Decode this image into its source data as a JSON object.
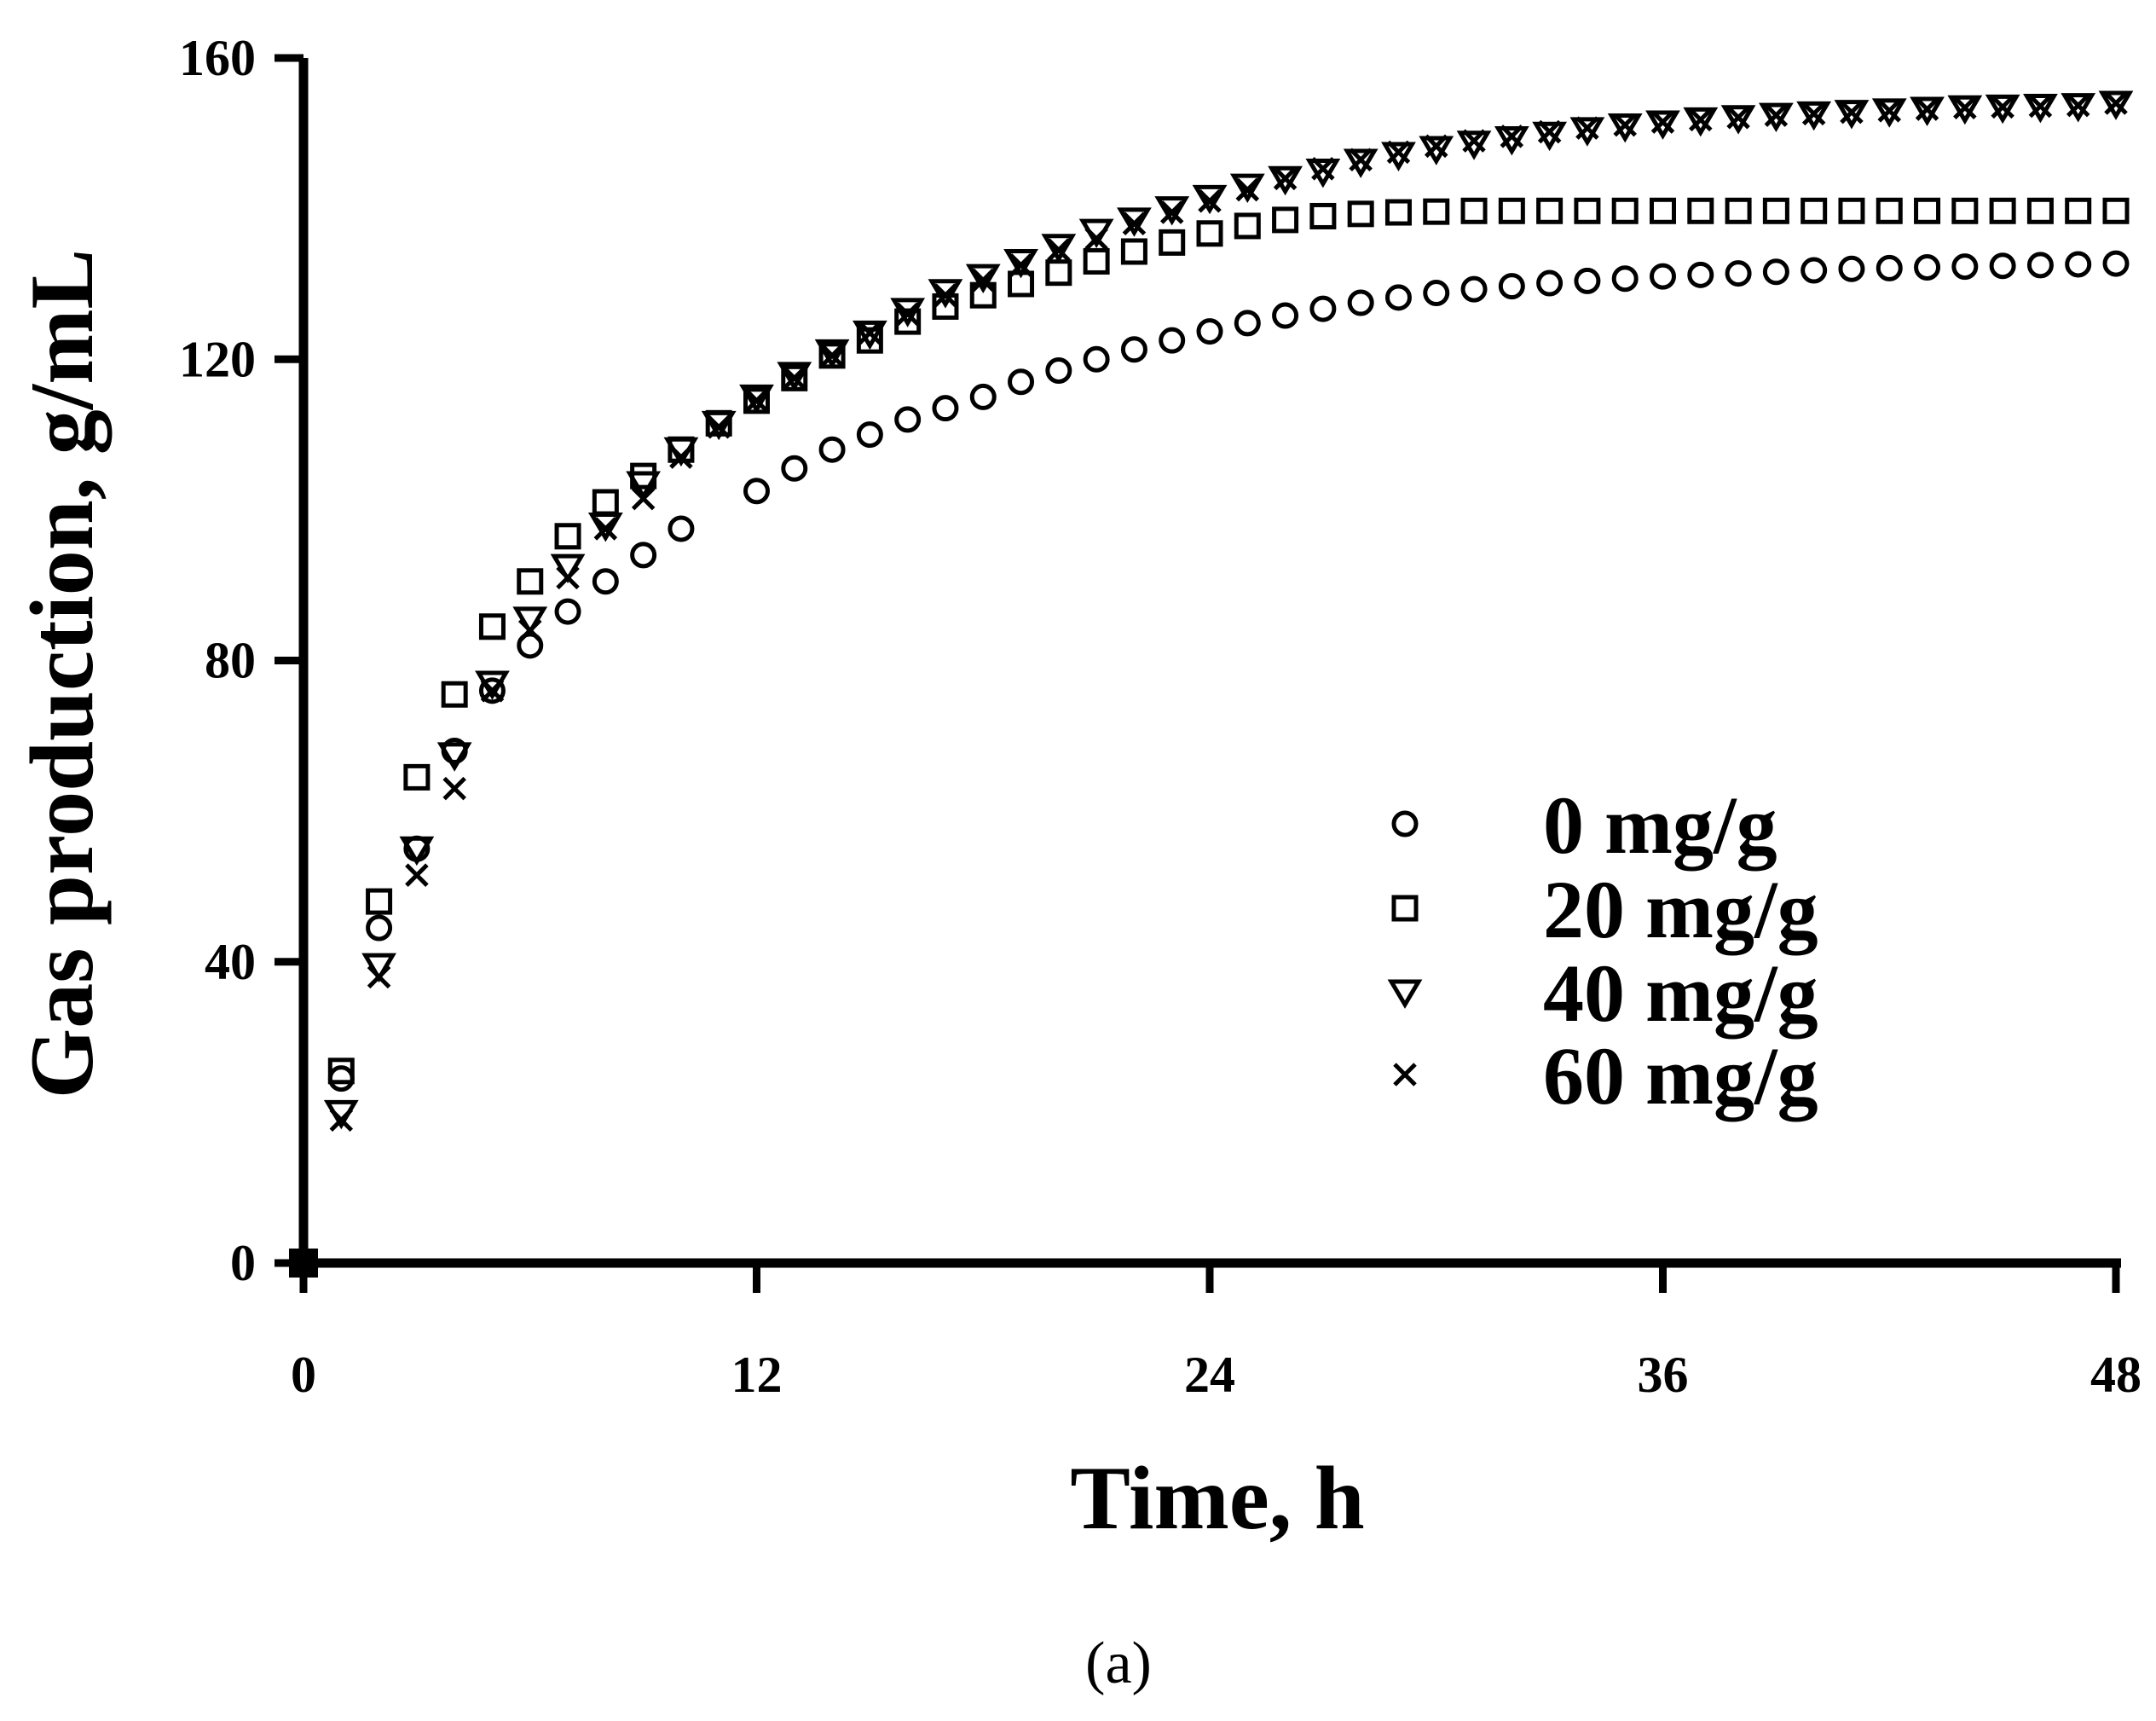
{
  "chart_data": {
    "type": "scatter",
    "title": "",
    "xlabel": "Time, h",
    "ylabel": "Gas production, g/mL",
    "xlim": [
      0,
      48
    ],
    "ylim": [
      0,
      160
    ],
    "xticks": [
      "0",
      "12",
      "24",
      "36",
      "48"
    ],
    "yticks": [
      "0",
      "40",
      "80",
      "120",
      "160"
    ],
    "grid": false,
    "legend_position": "lower-right",
    "caption": "(a)",
    "x": [
      0,
      1,
      2,
      3,
      4,
      5,
      6,
      7,
      8,
      9,
      10,
      11,
      12,
      13,
      14,
      15,
      16,
      17,
      18,
      19,
      20,
      21,
      22,
      23,
      24,
      25,
      26,
      27,
      28,
      29,
      30,
      31,
      32,
      33,
      34,
      35,
      36,
      37,
      38,
      39,
      40,
      41,
      42,
      43,
      44,
      45,
      46,
      47,
      48
    ],
    "series": [
      {
        "name": "0 mg/g",
        "marker": "circle",
        "values": [
          0,
          24.5,
          44.5,
          55,
          68,
          76,
          82,
          86.5,
          90.5,
          94,
          97.5,
          null,
          102.5,
          105.5,
          108,
          110,
          112,
          113.5,
          115,
          117,
          118.5,
          120,
          121.3,
          122.5,
          123.7,
          124.8,
          125.8,
          126.7,
          127.5,
          128.2,
          128.8,
          129.3,
          129.7,
          130.1,
          130.4,
          130.7,
          131,
          131.2,
          131.4,
          131.6,
          131.8,
          132,
          132.1,
          132.2,
          132.3,
          132.4,
          132.5,
          132.6,
          132.7
        ]
      },
      {
        "name": "20 mg/g",
        "marker": "square",
        "values": [
          0,
          25.5,
          48,
          64.5,
          75.5,
          84.5,
          90.5,
          96.5,
          101,
          104.5,
          108,
          111.5,
          114.5,
          117.5,
          120.5,
          122.5,
          125,
          127,
          128.5,
          130,
          131.5,
          133,
          134.3,
          135.5,
          136.7,
          137.7,
          138.5,
          139,
          139.3,
          139.5,
          139.6,
          139.7,
          139.7,
          139.7,
          139.7,
          139.7,
          139.7,
          139.7,
          139.7,
          139.7,
          139.7,
          139.7,
          139.7,
          139.7,
          139.7,
          139.7,
          139.7,
          139.7,
          139.7
        ]
      },
      {
        "name": "40 mg/g",
        "marker": "triangle-down",
        "values": [
          0,
          20,
          39.5,
          55,
          67.5,
          77,
          85.5,
          92.5,
          98,
          103.5,
          108,
          111.5,
          115,
          118,
          121,
          123.5,
          126.5,
          129,
          131,
          133,
          135,
          137,
          138.5,
          140,
          141.5,
          143,
          144,
          145,
          146.3,
          147.2,
          148,
          148.7,
          149.3,
          149.9,
          150.5,
          151,
          151.4,
          151.8,
          152.1,
          152.4,
          152.6,
          152.8,
          153,
          153.2,
          153.4,
          153.5,
          153.6,
          153.7,
          154
        ]
      },
      {
        "name": "60 mg/g",
        "marker": "x",
        "values": [
          0,
          19,
          38,
          51.5,
          63,
          76,
          84,
          91,
          97.5,
          101.5,
          107,
          111,
          114.5,
          117.5,
          120.5,
          123.5,
          126,
          128.5,
          130.5,
          132.5,
          134.5,
          136,
          138,
          139.5,
          141,
          142.5,
          144,
          145.3,
          146.5,
          147.5,
          148.3,
          149,
          149.6,
          150.2,
          150.7,
          151.1,
          151.5,
          151.8,
          152.1,
          152.4,
          152.6,
          152.8,
          153,
          153.2,
          153.4,
          153.5,
          153.6,
          153.7,
          154
        ]
      }
    ]
  }
}
